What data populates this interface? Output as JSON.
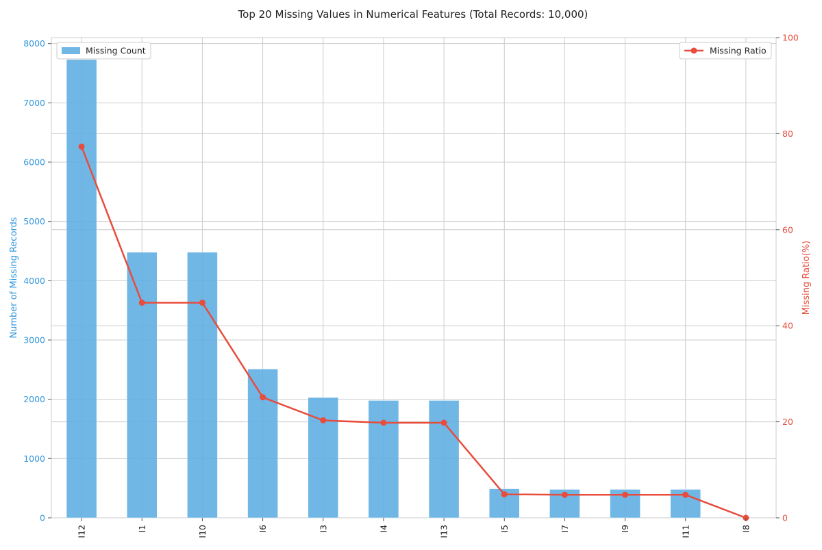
{
  "chart_data": {
    "type": "bar+line",
    "title": "Top 20 Missing Values in Numerical Features (Total Records: 10,000)",
    "categories": [
      "I12",
      "I1",
      "I10",
      "I6",
      "I3",
      "I4",
      "I13",
      "I5",
      "I7",
      "I9",
      "I11",
      "I8"
    ],
    "series": [
      {
        "name": "Missing Count",
        "type": "bar",
        "axis": "left",
        "values": [
          7730,
          4480,
          4480,
          2510,
          2030,
          1980,
          1980,
          490,
          480,
          480,
          480,
          0
        ]
      },
      {
        "name": "Missing Ratio",
        "type": "line",
        "axis": "right",
        "values": [
          77.3,
          44.8,
          44.8,
          25.1,
          20.3,
          19.8,
          19.8,
          4.9,
          4.8,
          4.8,
          4.8,
          0.0
        ]
      }
    ],
    "ylabel_left": "Number of Missing Records",
    "ylabel_right": "Missing Ratio(%)",
    "ylim_left": [
      0,
      8100
    ],
    "ylim_right": [
      0,
      100
    ],
    "yticks_left": [
      "0",
      "1000",
      "2000",
      "3000",
      "4000",
      "5000",
      "6000",
      "7000",
      "8000"
    ],
    "yticks_right": [
      "0",
      "20",
      "40",
      "60",
      "80",
      "100"
    ],
    "grid": true,
    "legend_bar_placement": "top-left",
    "legend_line_placement": "top-right",
    "colors": {
      "bar": "#5dade2",
      "line": "#e74c3c",
      "left_axis": "#3498db",
      "right_axis": "#e74c3c"
    }
  }
}
